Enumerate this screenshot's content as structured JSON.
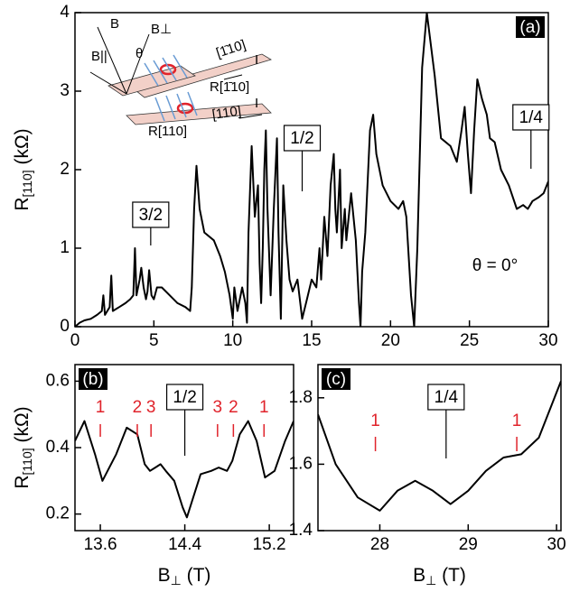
{
  "chart_data": [
    {
      "type": "line",
      "panel": "(a)",
      "x": [
        0,
        0.3,
        0.6,
        1.0,
        1.4,
        1.7,
        1.8,
        1.9,
        2.2,
        2.3,
        2.4,
        2.8,
        3.2,
        3.5,
        3.7,
        3.8,
        3.9,
        4.1,
        4.2,
        4.35,
        4.5,
        4.6,
        4.7,
        4.85,
        5.0,
        5.2,
        5.5,
        6.0,
        6.5,
        7.0,
        7.3,
        7.4,
        7.55,
        7.7,
        7.9,
        8.2,
        8.8,
        9.2,
        9.5,
        9.8,
        10.0,
        10.1,
        10.3,
        10.6,
        10.8,
        10.9,
        11.0,
        11.2,
        11.4,
        11.6,
        11.7,
        11.8,
        11.9,
        12.0,
        12.1,
        12.2,
        12.4,
        12.6,
        12.8,
        12.9,
        13.05,
        13.2,
        13.4,
        13.6,
        13.8,
        14.1,
        14.4,
        14.7,
        15.0,
        15.3,
        15.5,
        15.6,
        15.8,
        16.0,
        16.2,
        16.4,
        16.5,
        16.6,
        16.8,
        16.9,
        17.1,
        17.2,
        17.5,
        17.8,
        18.0,
        18.1,
        18.2,
        18.4,
        18.7,
        18.9,
        19.1,
        19.5,
        20.0,
        20.5,
        20.8,
        21.0,
        21.3,
        21.5,
        21.7,
        22.0,
        22.3,
        22.8,
        23.2,
        23.8,
        24.2,
        24.5,
        24.7,
        24.9,
        25.1,
        25.3,
        25.5,
        25.8,
        26.1,
        26.3,
        26.6,
        27.0,
        27.5,
        28.0,
        28.4,
        28.7,
        29.0,
        29.4,
        29.7,
        30
      ],
      "series": [
        {
          "color": "#000000",
          "values": [
            0,
            0.05,
            0.08,
            0.1,
            0.15,
            0.2,
            0.4,
            0.15,
            0.25,
            0.65,
            0.2,
            0.25,
            0.3,
            0.35,
            0.4,
            1.0,
            0.4,
            0.6,
            0.75,
            0.5,
            0.35,
            0.45,
            0.72,
            0.4,
            0.35,
            0.5,
            0.5,
            0.4,
            0.3,
            0.25,
            0.2,
            0.5,
            1.5,
            2.05,
            1.5,
            1.2,
            1.1,
            0.9,
            0.7,
            0.4,
            0.1,
            0.5,
            0.2,
            0.5,
            0.3,
            0.05,
            1.2,
            2.3,
            1.4,
            1.8,
            0.8,
            0.3,
            1.0,
            2.0,
            2.5,
            1.5,
            0.4,
            1.5,
            2.4,
            1.2,
            0.1,
            1.8,
            1.1,
            0.6,
            0.45,
            0.6,
            0.1,
            0.35,
            0.6,
            0.5,
            1.0,
            0.6,
            1.4,
            0.9,
            1.8,
            2.2,
            1.5,
            1.2,
            2.0,
            1.0,
            1.5,
            1.1,
            1.7,
            1.1,
            0.3,
            0,
            0.7,
            1.2,
            2.5,
            2.7,
            2.2,
            1.8,
            1.6,
            1.5,
            1.6,
            1.4,
            0.4,
            0,
            1.0,
            3.3,
            4,
            3.2,
            2.4,
            2.3,
            2.1,
            2.5,
            2.8,
            2.2,
            1.7,
            2.5,
            3.15,
            2.9,
            2.7,
            2.4,
            2.35,
            2.0,
            1.8,
            1.5,
            1.55,
            1.5,
            1.6,
            1.65,
            1.7,
            1.85
          ]
        }
      ],
      "xlim": [
        0,
        30
      ],
      "xticks": [
        0,
        5,
        10,
        15,
        20,
        25,
        30
      ],
      "ylim": [
        0,
        4
      ],
      "yticks": [
        0,
        1,
        2,
        3,
        4
      ],
      "ylabel": {
        "main": "R",
        "sub": "[110]",
        "unit": " (kΩ)"
      },
      "annotations": [
        {
          "label": "3/2",
          "x": 4.8
        },
        {
          "label": "1/2",
          "x": 14.4
        },
        {
          "label": "1/4",
          "x": 28.9
        }
      ],
      "note": "θ = 0°"
    },
    {
      "type": "line",
      "panel": "(b)",
      "x": [
        13.36,
        13.45,
        13.55,
        13.62,
        13.75,
        13.85,
        13.95,
        14.02,
        14.07,
        14.12,
        14.17,
        14.22,
        14.3,
        14.38,
        14.42,
        14.48,
        14.55,
        14.65,
        14.72,
        14.8,
        14.85,
        14.92,
        15.0,
        15.08,
        15.16,
        15.25,
        15.35,
        15.43
      ],
      "series": [
        {
          "color": "#000000",
          "values": [
            0.42,
            0.48,
            0.38,
            0.3,
            0.38,
            0.46,
            0.44,
            0.35,
            0.33,
            0.34,
            0.35,
            0.33,
            0.3,
            0.22,
            0.19,
            0.25,
            0.32,
            0.33,
            0.34,
            0.33,
            0.36,
            0.44,
            0.48,
            0.42,
            0.31,
            0.33,
            0.42,
            0.48
          ]
        }
      ],
      "xlim": [
        13.36,
        15.43
      ],
      "xticks": [
        13.6,
        14.4,
        15.2
      ],
      "ylim": [
        0.15,
        0.65
      ],
      "yticks": [
        0.2,
        0.4,
        0.6
      ],
      "ylabel": {
        "main": "R",
        "sub": "[110]",
        "unit": " (kΩ)"
      },
      "xlabel": {
        "main": "B",
        "sub": "⊥",
        "unit": " (T)"
      },
      "annotations": [
        {
          "label": "1/2",
          "x": 14.4
        }
      ],
      "markers": [
        {
          "label": "1",
          "x": 13.6
        },
        {
          "label": "2",
          "x": 13.95
        },
        {
          "label": "3",
          "x": 14.08
        },
        {
          "label": "3",
          "x": 14.71
        },
        {
          "label": "2",
          "x": 14.86
        },
        {
          "label": "1",
          "x": 15.15
        }
      ],
      "marker_color": "#e0232b"
    },
    {
      "type": "line",
      "panel": "(c)",
      "x": [
        27.3,
        27.5,
        27.75,
        28.0,
        28.2,
        28.4,
        28.6,
        28.8,
        29.0,
        29.2,
        29.4,
        29.6,
        29.8,
        30.05
      ],
      "series": [
        {
          "color": "#000000",
          "values": [
            1.75,
            1.6,
            1.5,
            1.46,
            1.52,
            1.55,
            1.52,
            1.48,
            1.52,
            1.58,
            1.62,
            1.63,
            1.68,
            1.85
          ]
        }
      ],
      "xlim": [
        27.3,
        30.05
      ],
      "xticks": [
        28,
        29,
        30
      ],
      "ylim": [
        1.4,
        1.9
      ],
      "yticks": [
        1.4,
        1.6,
        1.8
      ],
      "xlabel": {
        "main": "B",
        "sub": "⊥",
        "unit": " (T)"
      },
      "annotations": [
        {
          "label": "1/4",
          "x": 28.75
        }
      ],
      "markers": [
        {
          "label": "1",
          "x": 27.95
        },
        {
          "label": "1",
          "x": 29.55
        }
      ],
      "marker_color": "#e0232b"
    }
  ],
  "inset": {
    "b": "B",
    "bperp": "B⊥",
    "bpar": "B||",
    "theta": "θ",
    "current_top": "I",
    "current_bottom": "I",
    "r_top": "R[1̄10]",
    "r_bottom": "R[110]",
    "dir_top": "[1̄10]",
    "dir_bottom": "[110]"
  }
}
